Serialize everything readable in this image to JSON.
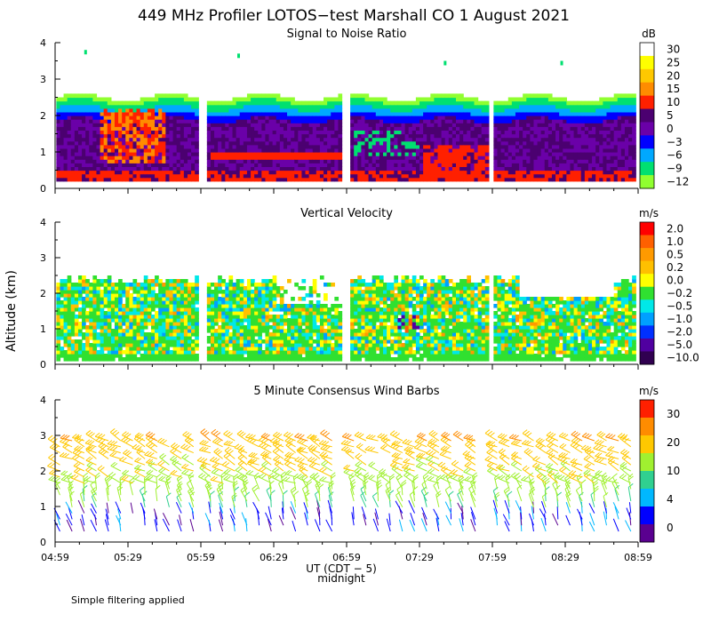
{
  "figure": {
    "title": "449 MHz Profiler LOTOS−test Marshall CO   1 August 2021",
    "ylabel": "Altitude (km)",
    "xlabel": "UT  (CDT − 5)",
    "x_note": "midnight",
    "footnote": "Simple filtering applied",
    "x_ticks": [
      "04:59",
      "05:29",
      "05:59",
      "06:29",
      "06:59",
      "07:29",
      "07:59",
      "08:29",
      "08:59"
    ]
  },
  "chart_data": [
    {
      "type": "heatmap",
      "title": "Signal to Noise Ratio",
      "colorbar_unit": "dB",
      "colorbar_labels": [
        "30",
        "25",
        "20",
        "15",
        "10",
        "5",
        "0",
        "−3",
        "−6",
        "−9",
        "−12"
      ],
      "colorbar_colors": [
        "#ffffff",
        "#ffff00",
        "#ffc800",
        "#ff8c00",
        "#ff2000",
        "#4b0070",
        "#6a00a8",
        "#0000ff",
        "#00a8ff",
        "#00e070",
        "#90ff30"
      ],
      "x_range": [
        "04:59",
        "08:59"
      ],
      "y_range": [
        0,
        4
      ],
      "y_ticks": [
        "0",
        "1",
        "2",
        "3",
        "4"
      ],
      "gaps": [
        [
          "05:59",
          "06:03"
        ],
        [
          "06:59",
          "07:01"
        ],
        [
          "07:59",
          "08:01"
        ]
      ],
      "echo_top_km": 2.5
    },
    {
      "type": "heatmap",
      "title": "Vertical Velocity",
      "colorbar_unit": "m/s",
      "colorbar_labels": [
        "2.0",
        "1.0",
        "0.5",
        "0.2",
        "0.0",
        "−0.2",
        "−0.5",
        "−1.0",
        "−2.0",
        "−5.0",
        "−10.0"
      ],
      "colorbar_colors": [
        "#ff0000",
        "#ff6000",
        "#ff9a00",
        "#ffc000",
        "#ffff00",
        "#30e030",
        "#00e8e8",
        "#00a0ff",
        "#0030ff",
        "#5000a0",
        "#300050"
      ],
      "x_range": [
        "04:59",
        "08:59"
      ],
      "y_range": [
        0,
        4
      ],
      "y_ticks": [
        "0",
        "1",
        "2",
        "3",
        "4"
      ],
      "echo_top_km": 2.5
    },
    {
      "type": "wind_barbs",
      "title": "5 Minute Consensus Wind Barbs",
      "colorbar_unit": "m/s",
      "colorbar_labels": [
        "30",
        "20",
        "10",
        "4",
        "0"
      ],
      "colorbar_colors": [
        "#ff2000",
        "#ff8c00",
        "#ffc800",
        "#a0f030",
        "#30d090",
        "#00b8ff",
        "#0000ff",
        "#5a0090"
      ],
      "x_range": [
        "04:59",
        "08:59"
      ],
      "y_range": [
        0,
        4
      ],
      "y_ticks": [
        "0",
        "1",
        "2",
        "3",
        "4"
      ],
      "barb_height_range_km": [
        0.3,
        2.9
      ]
    }
  ]
}
